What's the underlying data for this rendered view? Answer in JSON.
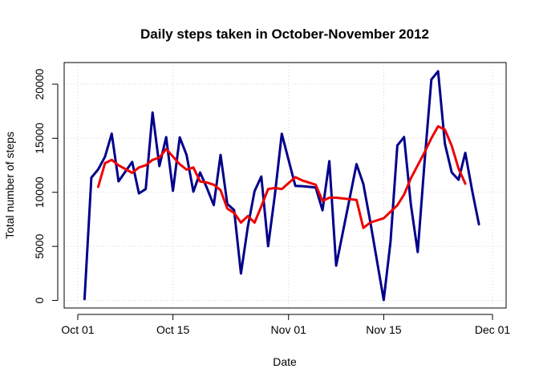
{
  "chart_data": {
    "type": "line",
    "title": "Daily steps taken in October-November 2012",
    "xlabel": "Date",
    "ylabel": "Total number of steps",
    "x_ticks": [
      {
        "date": "2012-10-01",
        "label": "Oct 01"
      },
      {
        "date": "2012-10-15",
        "label": "Oct 15"
      },
      {
        "date": "2012-11-01",
        "label": "Nov 01"
      },
      {
        "date": "2012-11-15",
        "label": "Nov 15"
      },
      {
        "date": "2012-12-01",
        "label": "Dec 01"
      }
    ],
    "y_ticks": [
      0,
      5000,
      10000,
      15000,
      20000
    ],
    "xlim": [
      "2012-09-29",
      "2012-12-03"
    ],
    "ylim": [
      -700,
      22000
    ],
    "grid": true,
    "series": [
      {
        "color": "#00008B",
        "points": [
          [
            "2012-10-02",
            126
          ],
          [
            "2012-10-03",
            11352
          ],
          [
            "2012-10-04",
            12116
          ],
          [
            "2012-10-05",
            13294
          ],
          [
            "2012-10-06",
            15420
          ],
          [
            "2012-10-07",
            11015
          ],
          [
            "2012-10-09",
            12811
          ],
          [
            "2012-10-10",
            9900
          ],
          [
            "2012-10-11",
            10304
          ],
          [
            "2012-10-12",
            17382
          ],
          [
            "2012-10-13",
            12426
          ],
          [
            "2012-10-14",
            15098
          ],
          [
            "2012-10-15",
            10139
          ],
          [
            "2012-10-16",
            15084
          ],
          [
            "2012-10-17",
            13452
          ],
          [
            "2012-10-18",
            10056
          ],
          [
            "2012-10-19",
            11829
          ],
          [
            "2012-10-20",
            10395
          ],
          [
            "2012-10-21",
            8821
          ],
          [
            "2012-10-22",
            13460
          ],
          [
            "2012-10-23",
            8918
          ],
          [
            "2012-10-24",
            8355
          ],
          [
            "2012-10-25",
            2492
          ],
          [
            "2012-10-26",
            6778
          ],
          [
            "2012-10-27",
            10119
          ],
          [
            "2012-10-28",
            11458
          ],
          [
            "2012-10-29",
            5018
          ],
          [
            "2012-10-30",
            9819
          ],
          [
            "2012-10-31",
            15414
          ],
          [
            "2012-11-02",
            10600
          ],
          [
            "2012-11-03",
            10571
          ],
          [
            "2012-11-05",
            10439
          ],
          [
            "2012-11-06",
            8334
          ],
          [
            "2012-11-07",
            12883
          ],
          [
            "2012-11-08",
            3219
          ],
          [
            "2012-11-11",
            12608
          ],
          [
            "2012-11-12",
            10765
          ],
          [
            "2012-11-13",
            7336
          ],
          [
            "2012-11-15",
            41
          ],
          [
            "2012-11-16",
            5441
          ],
          [
            "2012-11-17",
            14339
          ],
          [
            "2012-11-18",
            15110
          ],
          [
            "2012-11-19",
            8841
          ],
          [
            "2012-11-20",
            4472
          ],
          [
            "2012-11-21",
            12787
          ],
          [
            "2012-11-22",
            20427
          ],
          [
            "2012-11-23",
            21194
          ],
          [
            "2012-11-24",
            14478
          ],
          [
            "2012-11-25",
            11834
          ],
          [
            "2012-11-26",
            11162
          ],
          [
            "2012-11-27",
            13646
          ],
          [
            "2012-11-28",
            10183
          ],
          [
            "2012-11-29",
            7047
          ]
        ]
      },
      {
        "color": "#EE0000",
        "points": [
          [
            "2012-10-04",
            10500
          ],
          [
            "2012-10-05",
            12700
          ],
          [
            "2012-10-06",
            13000
          ],
          [
            "2012-10-07",
            12500
          ],
          [
            "2012-10-09",
            11800
          ],
          [
            "2012-10-10",
            12300
          ],
          [
            "2012-10-11",
            12500
          ],
          [
            "2012-10-12",
            13000
          ],
          [
            "2012-10-13",
            13200
          ],
          [
            "2012-10-14",
            14000
          ],
          [
            "2012-10-15",
            13300
          ],
          [
            "2012-10-16",
            12600
          ],
          [
            "2012-10-17",
            12100
          ],
          [
            "2012-10-18",
            12300
          ],
          [
            "2012-10-19",
            11000
          ],
          [
            "2012-10-20",
            10900
          ],
          [
            "2012-10-21",
            10700
          ],
          [
            "2012-10-22",
            10200
          ],
          [
            "2012-10-23",
            8500
          ],
          [
            "2012-10-24",
            8100
          ],
          [
            "2012-10-25",
            7200
          ],
          [
            "2012-10-26",
            7800
          ],
          [
            "2012-10-27",
            7200
          ],
          [
            "2012-10-28",
            8700
          ],
          [
            "2012-10-29",
            10300
          ],
          [
            "2012-10-30",
            10400
          ],
          [
            "2012-10-31",
            10300
          ],
          [
            "2012-11-02",
            11400
          ],
          [
            "2012-11-03",
            11100
          ],
          [
            "2012-11-05",
            10700
          ],
          [
            "2012-11-06",
            9200
          ],
          [
            "2012-11-07",
            9500
          ],
          [
            "2012-11-08",
            9500
          ],
          [
            "2012-11-11",
            9300
          ],
          [
            "2012-11-12",
            6700
          ],
          [
            "2012-11-13",
            7200
          ],
          [
            "2012-11-15",
            7600
          ],
          [
            "2012-11-16",
            8200
          ],
          [
            "2012-11-17",
            8800
          ],
          [
            "2012-11-18",
            9800
          ],
          [
            "2012-11-19",
            11300
          ],
          [
            "2012-11-20",
            12500
          ],
          [
            "2012-11-21",
            13700
          ],
          [
            "2012-11-22",
            15000
          ],
          [
            "2012-11-23",
            16100
          ],
          [
            "2012-11-24",
            15800
          ],
          [
            "2012-11-25",
            14300
          ],
          [
            "2012-11-26",
            12200
          ],
          [
            "2012-11-27",
            10800
          ]
        ]
      }
    ]
  }
}
